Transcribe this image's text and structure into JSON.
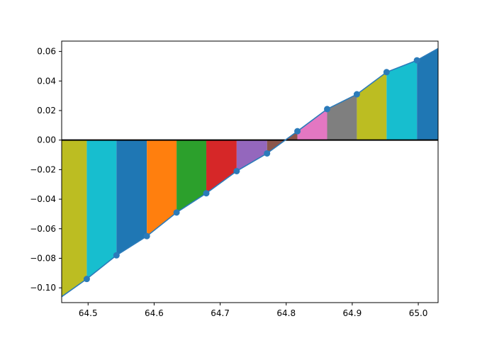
{
  "chart_data": {
    "type": "area",
    "title": "",
    "xlabel": "",
    "ylabel": "",
    "xlim": [
      64.46,
      65.03
    ],
    "ylim": [
      -0.11,
      0.067
    ],
    "grid": false,
    "legend": "none",
    "x_ticks": [
      64.5,
      64.6,
      64.7,
      64.8,
      64.9,
      65.0
    ],
    "x_tick_labels": [
      "64.5",
      "64.6",
      "64.7",
      "64.8",
      "64.9",
      "65.0"
    ],
    "y_ticks": [
      -0.1,
      -0.08,
      -0.06,
      -0.04,
      -0.02,
      0.0,
      0.02,
      0.04,
      0.06
    ],
    "y_tick_labels": [
      "−0.10",
      "−0.08",
      "−0.06",
      "−0.04",
      "−0.02",
      "0.00",
      "0.02",
      "0.04",
      "0.06"
    ],
    "line_color": "#2b7bba",
    "zero_line_color": "#000000",
    "series": [
      {
        "x": [
          64.46,
          64.498,
          64.543,
          64.589,
          64.634,
          64.679,
          64.725,
          64.771,
          64.817,
          64.862,
          64.907,
          64.952,
          64.998,
          65.03
        ],
        "y": [
          -0.106,
          -0.094,
          -0.078,
          -0.065,
          -0.049,
          -0.036,
          -0.021,
          -0.009,
          0.006,
          0.021,
          0.031,
          0.046,
          0.054,
          0.062
        ]
      }
    ],
    "markers": {
      "x": [
        64.498,
        64.543,
        64.589,
        64.634,
        64.679,
        64.725,
        64.771,
        64.817,
        64.862,
        64.907,
        64.952,
        64.998
      ],
      "y": [
        -0.094,
        -0.078,
        -0.065,
        -0.049,
        -0.036,
        -0.021,
        -0.009,
        0.006,
        0.021,
        0.031,
        0.046,
        0.054
      ]
    },
    "band_colors": [
      "#bcbd22",
      "#17becf",
      "#1f77b4",
      "#ff7f0e",
      "#2ca02c",
      "#d62728",
      "#9467bd",
      "#8c564b",
      "#e377c2",
      "#7f7f7f",
      "#bcbd22",
      "#17becf",
      "#1f77b4"
    ]
  }
}
